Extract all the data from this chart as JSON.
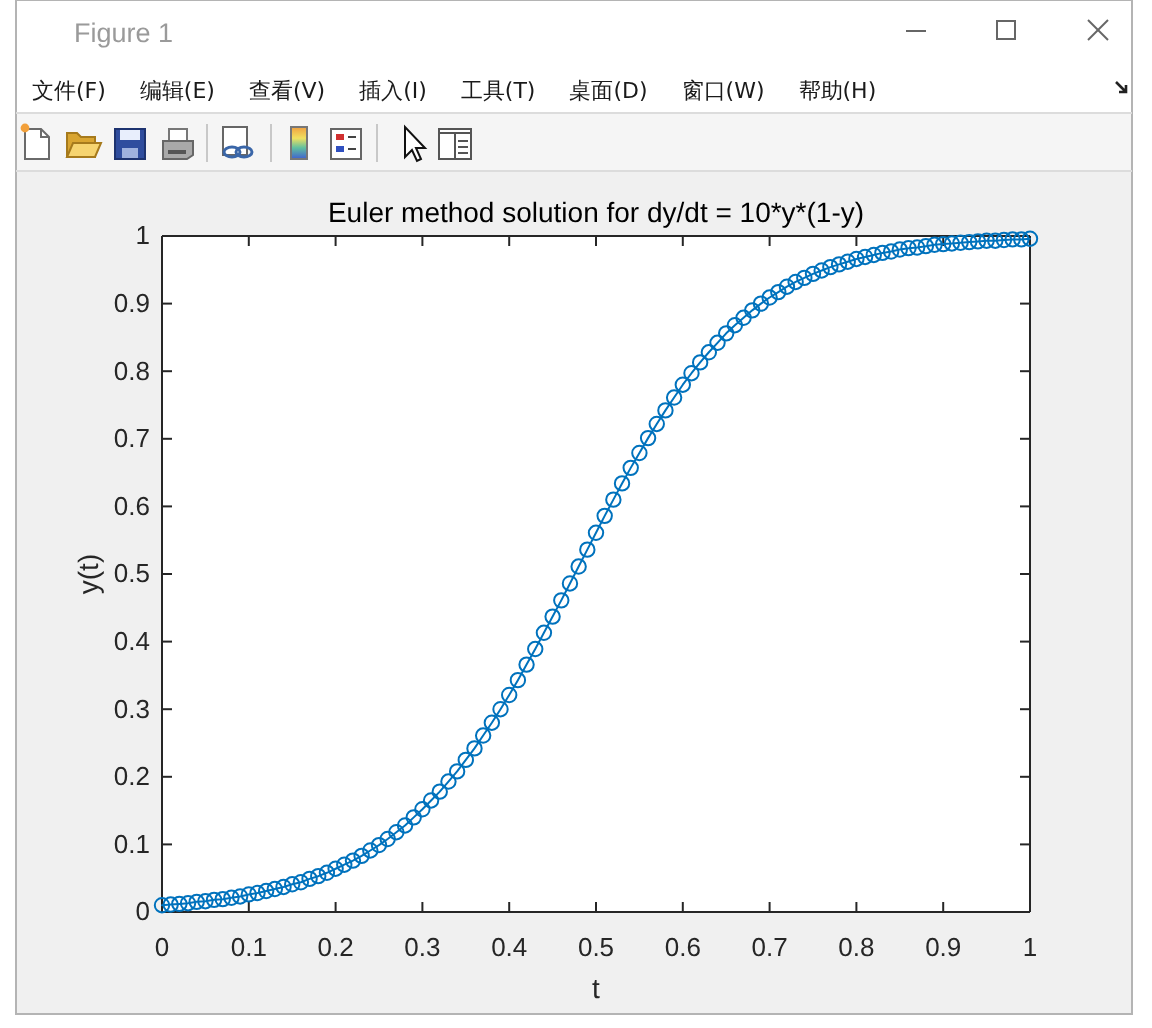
{
  "chart_data": {
    "type": "line",
    "title": "Euler method solution for dy/dt = 10*y*(1-y)",
    "xlabel": "t",
    "ylabel": "y(t)",
    "annotations": [
      "Figure 1",
      "文件(F)",
      "编辑(E)",
      "查看(V)",
      "插入(I)",
      "工具(T)",
      "桌面(D)",
      "窗口(W)",
      "帮助(H)"
    ],
    "x": [
      0,
      0.01,
      0.02,
      0.03,
      0.04,
      0.05,
      0.06,
      0.07,
      0.08,
      0.09,
      0.1,
      0.11,
      0.12,
      0.13,
      0.14,
      0.15,
      0.16,
      0.17,
      0.18,
      0.19,
      0.2,
      0.21,
      0.22,
      0.23,
      0.24,
      0.25,
      0.26,
      0.27,
      0.28,
      0.29,
      0.3,
      0.31,
      0.32,
      0.33,
      0.34,
      0.35,
      0.36,
      0.37,
      0.38,
      0.39,
      0.4,
      0.41,
      0.42,
      0.43,
      0.44,
      0.45,
      0.46,
      0.47,
      0.48,
      0.49,
      0.5,
      0.51,
      0.52,
      0.53,
      0.54,
      0.55,
      0.56,
      0.57,
      0.58,
      0.59,
      0.6,
      0.61,
      0.62,
      0.63,
      0.64,
      0.65,
      0.66,
      0.67,
      0.68,
      0.69,
      0.7,
      0.71,
      0.72,
      0.73,
      0.74,
      0.75,
      0.76,
      0.77,
      0.78,
      0.79,
      0.8,
      0.81,
      0.82,
      0.83,
      0.84,
      0.85,
      0.86,
      0.87,
      0.88,
      0.89,
      0.9,
      0.91,
      0.92,
      0.93,
      0.94,
      0.95,
      0.96,
      0.97,
      0.98,
      0.99,
      1
    ],
    "series": [
      {
        "color": "#0072bd",
        "values": [
          0.01,
          0.011,
          0.012,
          0.013,
          0.015,
          0.016,
          0.018,
          0.019,
          0.021,
          0.023,
          0.026,
          0.028,
          0.031,
          0.034,
          0.037,
          0.041,
          0.044,
          0.049,
          0.053,
          0.058,
          0.064,
          0.07,
          0.076,
          0.083,
          0.091,
          0.099,
          0.108,
          0.118,
          0.128,
          0.14,
          0.152,
          0.165,
          0.178,
          0.193,
          0.208,
          0.225,
          0.242,
          0.261,
          0.28,
          0.3,
          0.321,
          0.343,
          0.366,
          0.389,
          0.413,
          0.437,
          0.461,
          0.486,
          0.511,
          0.536,
          0.561,
          0.586,
          0.61,
          0.634,
          0.657,
          0.679,
          0.701,
          0.722,
          0.742,
          0.761,
          0.78,
          0.797,
          0.813,
          0.828,
          0.842,
          0.856,
          0.868,
          0.879,
          0.89,
          0.9,
          0.909,
          0.917,
          0.925,
          0.932,
          0.938,
          0.944,
          0.949,
          0.954,
          0.958,
          0.962,
          0.966,
          0.969,
          0.972,
          0.975,
          0.977,
          0.98,
          0.982,
          0.983,
          0.985,
          0.987,
          0.988,
          0.989,
          0.99,
          0.991,
          0.992,
          0.993,
          0.993,
          0.994,
          0.995,
          0.995,
          0.996
        ]
      }
    ],
    "xlim": [
      0,
      1
    ],
    "ylim": [
      0,
      1
    ],
    "xticks": [
      0,
      0.1,
      0.2,
      0.3,
      0.4,
      0.5,
      0.6,
      0.7,
      0.8,
      0.9,
      1
    ],
    "yticks": [
      0,
      0.1,
      0.2,
      0.3,
      0.4,
      0.5,
      0.6,
      0.7,
      0.8,
      0.9,
      1
    ],
    "marker": "circle",
    "line_style": "solid"
  }
}
